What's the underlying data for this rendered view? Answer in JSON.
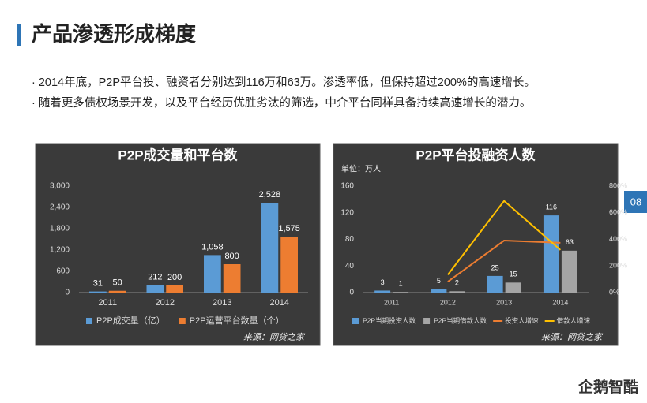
{
  "header": {
    "title": "产品渗透形成梯度"
  },
  "bullets": [
    "· 2014年底，P2P平台投、融资者分别达到116万和63万。渗透率低，但保持超过200%的高速增长。",
    "· 随着更多债权场景开发，以及平台经历优胜劣汰的筛选，中介平台同样具备持续高速增长的潜力。"
  ],
  "page_number": "08",
  "logo": "企鹅智酷",
  "chart_data": [
    {
      "type": "bar",
      "title": "P2P成交量和平台数",
      "source": "来源：网贷之家",
      "categories": [
        "2011",
        "2012",
        "2013",
        "2014"
      ],
      "series": [
        {
          "name": "P2P成交量（亿）",
          "color": "#5b9bd5",
          "values": [
            31,
            212,
            1058,
            2528
          ],
          "value_labels": [
            "31",
            "212",
            "1,058",
            "2,528"
          ]
        },
        {
          "name": "P2P运营平台数量（个）",
          "color": "#ed7d31",
          "values": [
            50,
            200,
            800,
            1575
          ],
          "value_labels": [
            "50",
            "200",
            "800",
            "1,575"
          ]
        }
      ],
      "ylim": [
        0,
        3000
      ],
      "yticks": [
        0,
        600,
        {
          "value": 1200,
          "label": "1,200"
        },
        {
          "value": 1800,
          "label": "1,800"
        },
        {
          "value": 2400,
          "label": "2,400"
        },
        {
          "value": 3000,
          "label": "3,000"
        }
      ],
      "grid": false
    },
    {
      "type": "bar",
      "title": "P2P平台投融资人数",
      "y_label": "单位：万人",
      "source": "来源：网贷之家",
      "categories": [
        "2011",
        "2012",
        "2013",
        "2014"
      ],
      "series": [
        {
          "name": "P2P当期投资人数",
          "color": "#5b9bd5",
          "values": [
            3,
            5,
            25,
            116
          ]
        },
        {
          "name": "P2P当期借款人数",
          "color": "#a5a5a5",
          "values": [
            1,
            2,
            15,
            63
          ]
        },
        {
          "name": "投资人增速",
          "color": "#ed7d31",
          "type": "line",
          "axis": "y2",
          "values": [
            null,
            82,
            391,
            374
          ]
        },
        {
          "name": "借款人增速",
          "color": "#ffc000",
          "type": "line",
          "axis": "y2",
          "values": [
            null,
            134,
            689,
            321
          ]
        }
      ],
      "ylim": [
        0,
        160
      ],
      "yticks": [
        0,
        40,
        80,
        120,
        160
      ],
      "y2lim": [
        0,
        800
      ],
      "y2ticks": [
        {
          "value": 0,
          "label": "0%"
        },
        {
          "value": 200,
          "label": "200%"
        },
        {
          "value": 400,
          "label": "400%"
        },
        {
          "value": 600,
          "label": "600%"
        },
        {
          "value": 800,
          "label": "800%"
        }
      ],
      "grid": false
    }
  ]
}
